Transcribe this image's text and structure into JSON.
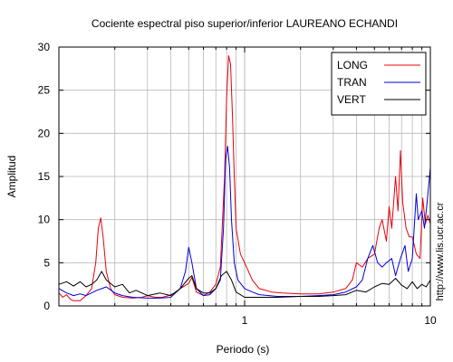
{
  "chart_data": {
    "type": "line",
    "title": "Cociente espectral piso superior/inferior LAUREANO ECHANDI",
    "xlabel": "Periodo (s)",
    "ylabel": "Amplitud",
    "xscale": "log",
    "xlim": [
      0.1,
      10
    ],
    "ylim": [
      0,
      30
    ],
    "xticks": [
      1,
      10
    ],
    "xtick_labels": [
      "1",
      "10"
    ],
    "yticks": [
      0,
      5,
      10,
      15,
      20,
      25,
      30
    ],
    "ytick_labels": [
      "0",
      "5",
      "10",
      "15",
      "20",
      "25",
      "30"
    ],
    "grid": true,
    "legend_position": "top-right",
    "watermark": "http://www.lis.ucr.ac.cr",
    "series": [
      {
        "name": "LONG",
        "color": "#e8000b",
        "x": [
          0.1,
          0.105,
          0.11,
          0.115,
          0.12,
          0.13,
          0.14,
          0.15,
          0.158,
          0.163,
          0.168,
          0.173,
          0.18,
          0.19,
          0.2,
          0.22,
          0.25,
          0.28,
          0.3,
          0.33,
          0.36,
          0.39,
          0.42,
          0.45,
          0.5,
          0.52,
          0.55,
          0.6,
          0.65,
          0.7,
          0.74,
          0.78,
          0.8,
          0.82,
          0.84,
          0.86,
          0.88,
          0.9,
          0.95,
          1.0,
          1.1,
          1.2,
          1.4,
          1.6,
          2.0,
          2.5,
          3.0,
          3.5,
          3.8,
          4.0,
          4.3,
          4.6,
          5.0,
          5.3,
          5.5,
          5.8,
          6.0,
          6.2,
          6.5,
          6.7,
          6.9,
          7.1,
          7.4,
          7.7,
          8.0,
          8.4,
          8.8,
          9.1,
          9.4,
          9.7,
          10.0
        ],
        "y": [
          1.5,
          1.0,
          1.3,
          0.8,
          0.6,
          0.6,
          1.2,
          2.0,
          5.0,
          9.0,
          10.2,
          8.0,
          4.0,
          2.0,
          1.3,
          1.0,
          0.9,
          1.0,
          1.2,
          1.0,
          1.0,
          1.2,
          1.5,
          2.0,
          2.6,
          3.3,
          1.6,
          1.2,
          1.6,
          2.5,
          4.5,
          15.0,
          24.0,
          29.0,
          28.0,
          22.0,
          15.0,
          9.0,
          6.0,
          5.0,
          3.0,
          2.0,
          1.6,
          1.5,
          1.4,
          1.4,
          1.6,
          2.0,
          3.0,
          5.0,
          4.5,
          5.5,
          6.0,
          9.0,
          10.0,
          7.5,
          11.5,
          9.0,
          15.0,
          11.0,
          18.0,
          12.0,
          9.0,
          8.0,
          8.0,
          6.0,
          5.5,
          12.5,
          9.5,
          10.5,
          9.5
        ]
      },
      {
        "name": "TRAN",
        "color": "#0000d8",
        "x": [
          0.1,
          0.11,
          0.12,
          0.13,
          0.14,
          0.15,
          0.16,
          0.17,
          0.18,
          0.2,
          0.22,
          0.25,
          0.3,
          0.35,
          0.4,
          0.45,
          0.48,
          0.5,
          0.52,
          0.55,
          0.6,
          0.65,
          0.7,
          0.74,
          0.77,
          0.79,
          0.81,
          0.83,
          0.85,
          0.88,
          0.92,
          1.0,
          1.1,
          1.2,
          1.5,
          2.0,
          2.5,
          3.0,
          3.5,
          4.0,
          4.3,
          4.6,
          4.9,
          5.2,
          5.5,
          5.8,
          6.2,
          6.5,
          6.9,
          7.3,
          7.6,
          8.0,
          8.4,
          8.6,
          9.0,
          9.3,
          9.6,
          9.8,
          10.0
        ],
        "y": [
          2.0,
          1.5,
          1.2,
          1.4,
          1.2,
          1.5,
          1.8,
          2.0,
          2.2,
          1.5,
          1.2,
          1.0,
          0.9,
          0.9,
          1.0,
          2.0,
          4.0,
          6.8,
          5.0,
          2.0,
          1.2,
          1.3,
          2.0,
          3.0,
          9.0,
          17.0,
          18.5,
          16.0,
          10.0,
          5.0,
          3.0,
          2.0,
          1.6,
          1.3,
          1.1,
          1.1,
          1.2,
          1.3,
          1.6,
          2.2,
          3.0,
          5.5,
          7.0,
          5.0,
          4.5,
          5.0,
          5.5,
          3.5,
          5.5,
          7.0,
          4.0,
          5.5,
          13.0,
          10.0,
          11.0,
          9.0,
          12.0,
          14.0,
          16.0
        ]
      },
      {
        "name": "VERT",
        "color": "#000000",
        "x": [
          0.1,
          0.11,
          0.12,
          0.13,
          0.14,
          0.15,
          0.16,
          0.17,
          0.18,
          0.2,
          0.22,
          0.24,
          0.26,
          0.3,
          0.35,
          0.4,
          0.45,
          0.5,
          0.52,
          0.55,
          0.6,
          0.65,
          0.7,
          0.75,
          0.8,
          0.85,
          0.9,
          1.0,
          1.2,
          1.5,
          2.0,
          2.5,
          3.0,
          3.5,
          4.0,
          4.5,
          5.0,
          5.5,
          6.0,
          6.5,
          7.0,
          7.5,
          8.0,
          8.5,
          9.0,
          9.5,
          10.0
        ],
        "y": [
          2.5,
          2.8,
          2.3,
          2.8,
          2.2,
          2.5,
          3.0,
          4.0,
          3.0,
          2.2,
          2.5,
          1.5,
          1.8,
          1.2,
          1.5,
          1.2,
          2.0,
          3.2,
          3.5,
          2.0,
          1.5,
          1.5,
          2.0,
          3.5,
          4.0,
          3.0,
          1.6,
          1.0,
          1.0,
          1.0,
          1.1,
          1.1,
          1.2,
          1.3,
          1.8,
          1.6,
          2.2,
          2.6,
          2.5,
          3.2,
          2.4,
          2.0,
          2.8,
          2.0,
          2.5,
          2.2,
          3.0
        ]
      }
    ]
  }
}
